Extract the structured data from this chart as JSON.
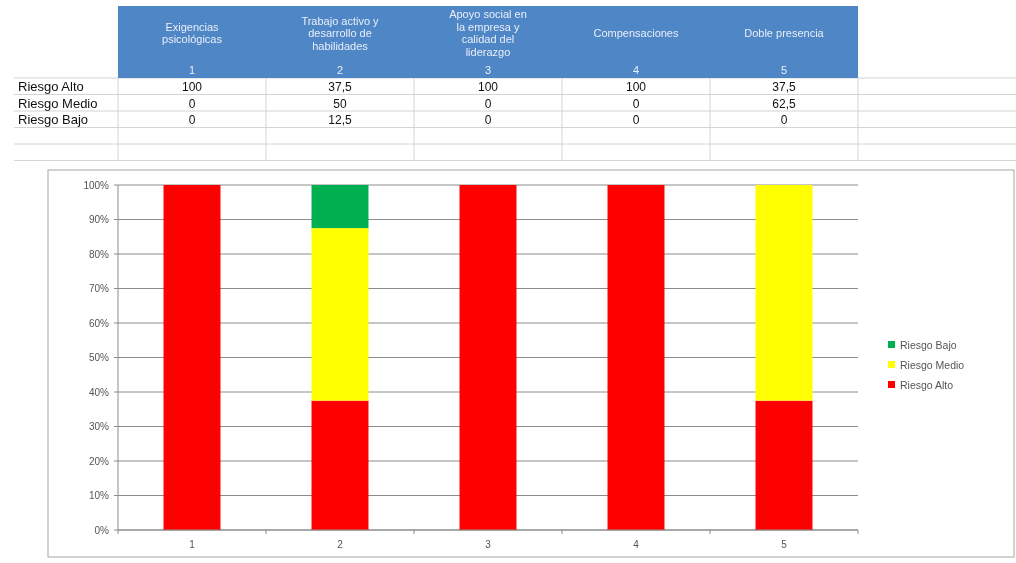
{
  "chart_data": {
    "type": "bar",
    "stacked": true,
    "categories": [
      "1",
      "2",
      "3",
      "4",
      "5"
    ],
    "annotations": [
      "Exigencias psicológicas",
      "Trabajo activo y desarrollo de habilidades",
      "Apoyo social en la empresa y calidad del liderazgo",
      "Compensaciones",
      "Doble presencia"
    ],
    "series": [
      {
        "name": "Riesgo Alto",
        "color": "#ff0000",
        "values": [
          100,
          37.5,
          100,
          100,
          37.5
        ],
        "value_labels": [
          "100",
          "37,5",
          "100",
          "100",
          "37,5"
        ]
      },
      {
        "name": "Riesgo Medio",
        "color": "#ffff00",
        "values": [
          0,
          50,
          0,
          0,
          62.5
        ],
        "value_labels": [
          "0",
          "50",
          "0",
          "0",
          "62,5"
        ]
      },
      {
        "name": "Riesgo Bajo",
        "color": "#00b050",
        "values": [
          0,
          12.5,
          0,
          0,
          0
        ],
        "value_labels": [
          "0",
          "12,5",
          "0",
          "0",
          "0"
        ]
      }
    ],
    "ylim": [
      0,
      100
    ],
    "yticks": [
      {
        "value": 0,
        "label": "0%"
      },
      {
        "value": 10,
        "label": "10%"
      },
      {
        "value": 20,
        "label": "20%"
      },
      {
        "value": 30,
        "label": "30%"
      },
      {
        "value": 40,
        "label": "40%"
      },
      {
        "value": 50,
        "label": "50%"
      },
      {
        "value": 60,
        "label": "60%"
      },
      {
        "value": 70,
        "label": "70%"
      },
      {
        "value": 80,
        "label": "80%"
      },
      {
        "value": 90,
        "label": "90%"
      },
      {
        "value": 100,
        "label": "100%"
      }
    ],
    "grid": "y",
    "legend": "right"
  }
}
